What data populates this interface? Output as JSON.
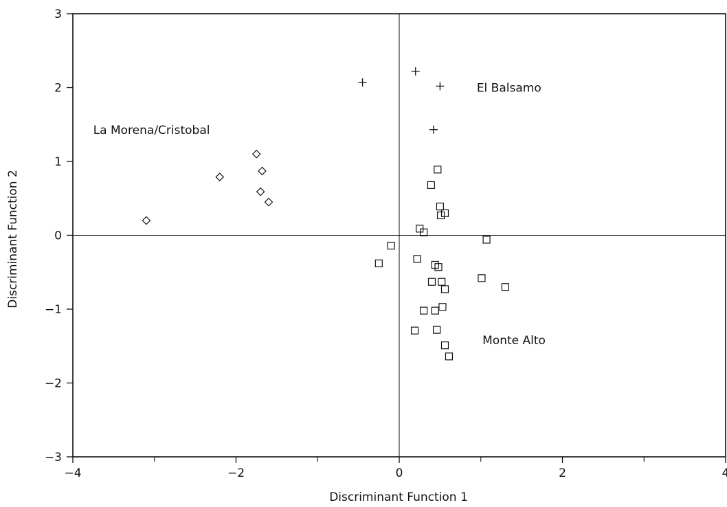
{
  "chart_data": {
    "type": "scatter",
    "xlabel": "Discriminant Function 1",
    "ylabel": "Discriminant Function 2",
    "xlim": [
      -4,
      4
    ],
    "ylim": [
      -3,
      3
    ],
    "x_ticks": [
      -4,
      -2,
      0,
      2,
      4
    ],
    "x_tick_labels": [
      "−4",
      "−2",
      "0",
      "2",
      "4"
    ],
    "y_ticks": [
      -3,
      -2,
      -1,
      0,
      1,
      2,
      3
    ],
    "y_tick_labels": [
      "−3",
      "−2",
      "−1",
      "0",
      "1",
      "2",
      "3"
    ],
    "grid": false,
    "reference_lines": {
      "x": 0,
      "y": 0
    },
    "series": [
      {
        "marker": "diamond",
        "points": [
          {
            "x": -3.1,
            "y": 0.2
          },
          {
            "x": -2.2,
            "y": 0.79
          },
          {
            "x": -1.75,
            "y": 1.1
          },
          {
            "x": -1.68,
            "y": 0.87
          },
          {
            "x": -1.7,
            "y": 0.59
          },
          {
            "x": -1.6,
            "y": 0.45
          }
        ]
      },
      {
        "marker": "plus",
        "points": [
          {
            "x": -0.45,
            "y": 2.07
          },
          {
            "x": 0.2,
            "y": 2.22
          },
          {
            "x": 0.5,
            "y": 2.02
          },
          {
            "x": 0.42,
            "y": 1.43
          }
        ]
      },
      {
        "marker": "square",
        "points": [
          {
            "x": 0.47,
            "y": 0.89
          },
          {
            "x": 0.39,
            "y": 0.68
          },
          {
            "x": 0.5,
            "y": 0.39
          },
          {
            "x": 0.56,
            "y": 0.3
          },
          {
            "x": 0.51,
            "y": 0.27
          },
          {
            "x": 0.25,
            "y": 0.09
          },
          {
            "x": 0.3,
            "y": 0.04
          },
          {
            "x": -0.1,
            "y": -0.14
          },
          {
            "x": -0.25,
            "y": -0.38
          },
          {
            "x": 0.22,
            "y": -0.32
          },
          {
            "x": 0.44,
            "y": -0.4
          },
          {
            "x": 0.48,
            "y": -0.43
          },
          {
            "x": 0.4,
            "y": -0.63
          },
          {
            "x": 0.52,
            "y": -0.63
          },
          {
            "x": 0.56,
            "y": -0.73
          },
          {
            "x": 1.01,
            "y": -0.58
          },
          {
            "x": 1.07,
            "y": -0.06
          },
          {
            "x": 1.3,
            "y": -0.7
          },
          {
            "x": 0.53,
            "y": -0.97
          },
          {
            "x": 0.44,
            "y": -1.02
          },
          {
            "x": 0.3,
            "y": -1.02
          },
          {
            "x": 0.19,
            "y": -1.29
          },
          {
            "x": 0.46,
            "y": -1.28
          },
          {
            "x": 0.56,
            "y": -1.49
          },
          {
            "x": 0.61,
            "y": -1.64
          }
        ]
      }
    ],
    "annotations": [
      {
        "text": "El Balsamo",
        "x": 0.95,
        "y": 2.0
      },
      {
        "text": "La Morena/Cristobal",
        "x": -3.75,
        "y": 1.43
      },
      {
        "text": "Monte Alto",
        "x": 1.02,
        "y": -1.42
      }
    ]
  }
}
